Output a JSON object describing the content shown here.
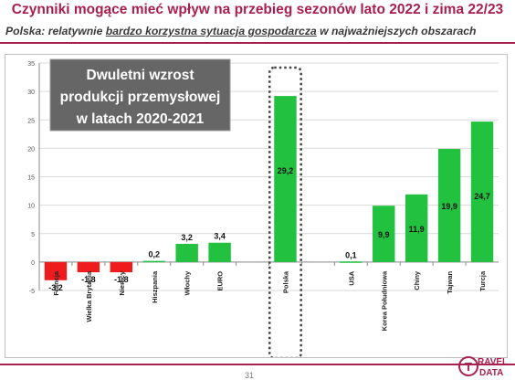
{
  "header": {
    "title": "Czynniki mogące mieć wpływ na przebieg sezonów lato 2022 i zima 22/23",
    "subtitle_prefix": "Polska: relatywnie ",
    "subtitle_emphasis": "bardzo korzystna sytuacja gospodarcza",
    "subtitle_suffix": " w najważniejszych obszarach"
  },
  "footer": {
    "page_number": "31",
    "logo_text_top": "RAVEL",
    "logo_text_bottom": "DATA",
    "logo_letter": "T"
  },
  "colors": {
    "brand": "#a8204f",
    "positive": "#22c13f",
    "negative": "#ee1c1c",
    "callout_bg": "#666666"
  },
  "chart_data": {
    "type": "bar",
    "title": "",
    "xlabel": "",
    "ylabel": "",
    "ylim": [
      -5,
      35
    ],
    "yticks": [
      -5,
      0,
      5,
      10,
      15,
      20,
      25,
      30,
      35
    ],
    "grid": true,
    "callout": {
      "lines": [
        "Dwuletni wzrost",
        "produkcji przemysłowej",
        "w latach 2020-2021"
      ]
    },
    "highlight": "Polska",
    "groups": [
      {
        "categories": [
          "Francja",
          "Wielka Brytania",
          "Niemcy",
          "Hiszpania",
          "Włochy",
          "EURO"
        ],
        "values": [
          -3.2,
          -1.8,
          -1.8,
          0.2,
          3.2,
          3.4
        ],
        "labels": [
          "-3,2",
          "-1,8",
          "-1,8",
          "0,2",
          "3,2",
          "3,4"
        ]
      },
      {
        "categories": [
          "Polska"
        ],
        "values": [
          29.2
        ],
        "labels": [
          "29,2"
        ]
      },
      {
        "categories": [
          "USA",
          "Korea Południowa",
          "Chiny",
          "Tajwan",
          "Turcja"
        ],
        "values": [
          0.1,
          9.9,
          11.9,
          19.9,
          24.7
        ],
        "labels": [
          "0,1",
          "9,9",
          "11,9",
          "19,9",
          "24,7"
        ]
      }
    ]
  }
}
